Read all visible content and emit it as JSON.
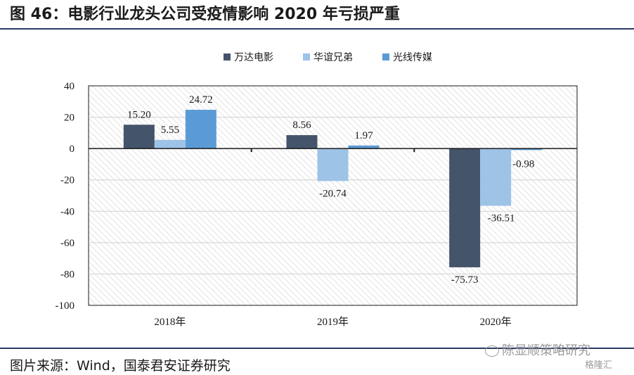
{
  "header": {
    "title": "图 46：电影行业龙头公司受疫情影响 2020 年亏损严重"
  },
  "footer": {
    "source": "图片来源：Wind，国泰君安证券研究",
    "watermark": "陈显顺策略研究",
    "watermark_sub": "格隆汇"
  },
  "chart_data": {
    "type": "bar",
    "categories": [
      "2018年",
      "2019年",
      "2020年"
    ],
    "series": [
      {
        "name": "万达电影",
        "values": [
          15.2,
          8.56,
          -75.73
        ],
        "labels": [
          "15.20",
          "8.56",
          "-75.73"
        ],
        "color": "#44546a"
      },
      {
        "name": "华谊兄弟",
        "values": [
          5.55,
          -20.74,
          -36.51
        ],
        "labels": [
          "5.55",
          "-20.74",
          "-36.51"
        ],
        "color": "#9dc3e6"
      },
      {
        "name": "光线传媒",
        "values": [
          24.72,
          1.97,
          -0.98
        ],
        "labels": [
          "24.72",
          "1.97",
          "-0.98"
        ],
        "color": "#5b9bd5"
      }
    ],
    "ylim": [
      -100,
      40
    ],
    "yticks": [
      "40",
      "20",
      "0",
      "-20",
      "-40",
      "-60",
      "-80",
      "-100"
    ],
    "grid": true,
    "legend_position": "top-center",
    "title": "",
    "xlabel": "",
    "ylabel": ""
  }
}
